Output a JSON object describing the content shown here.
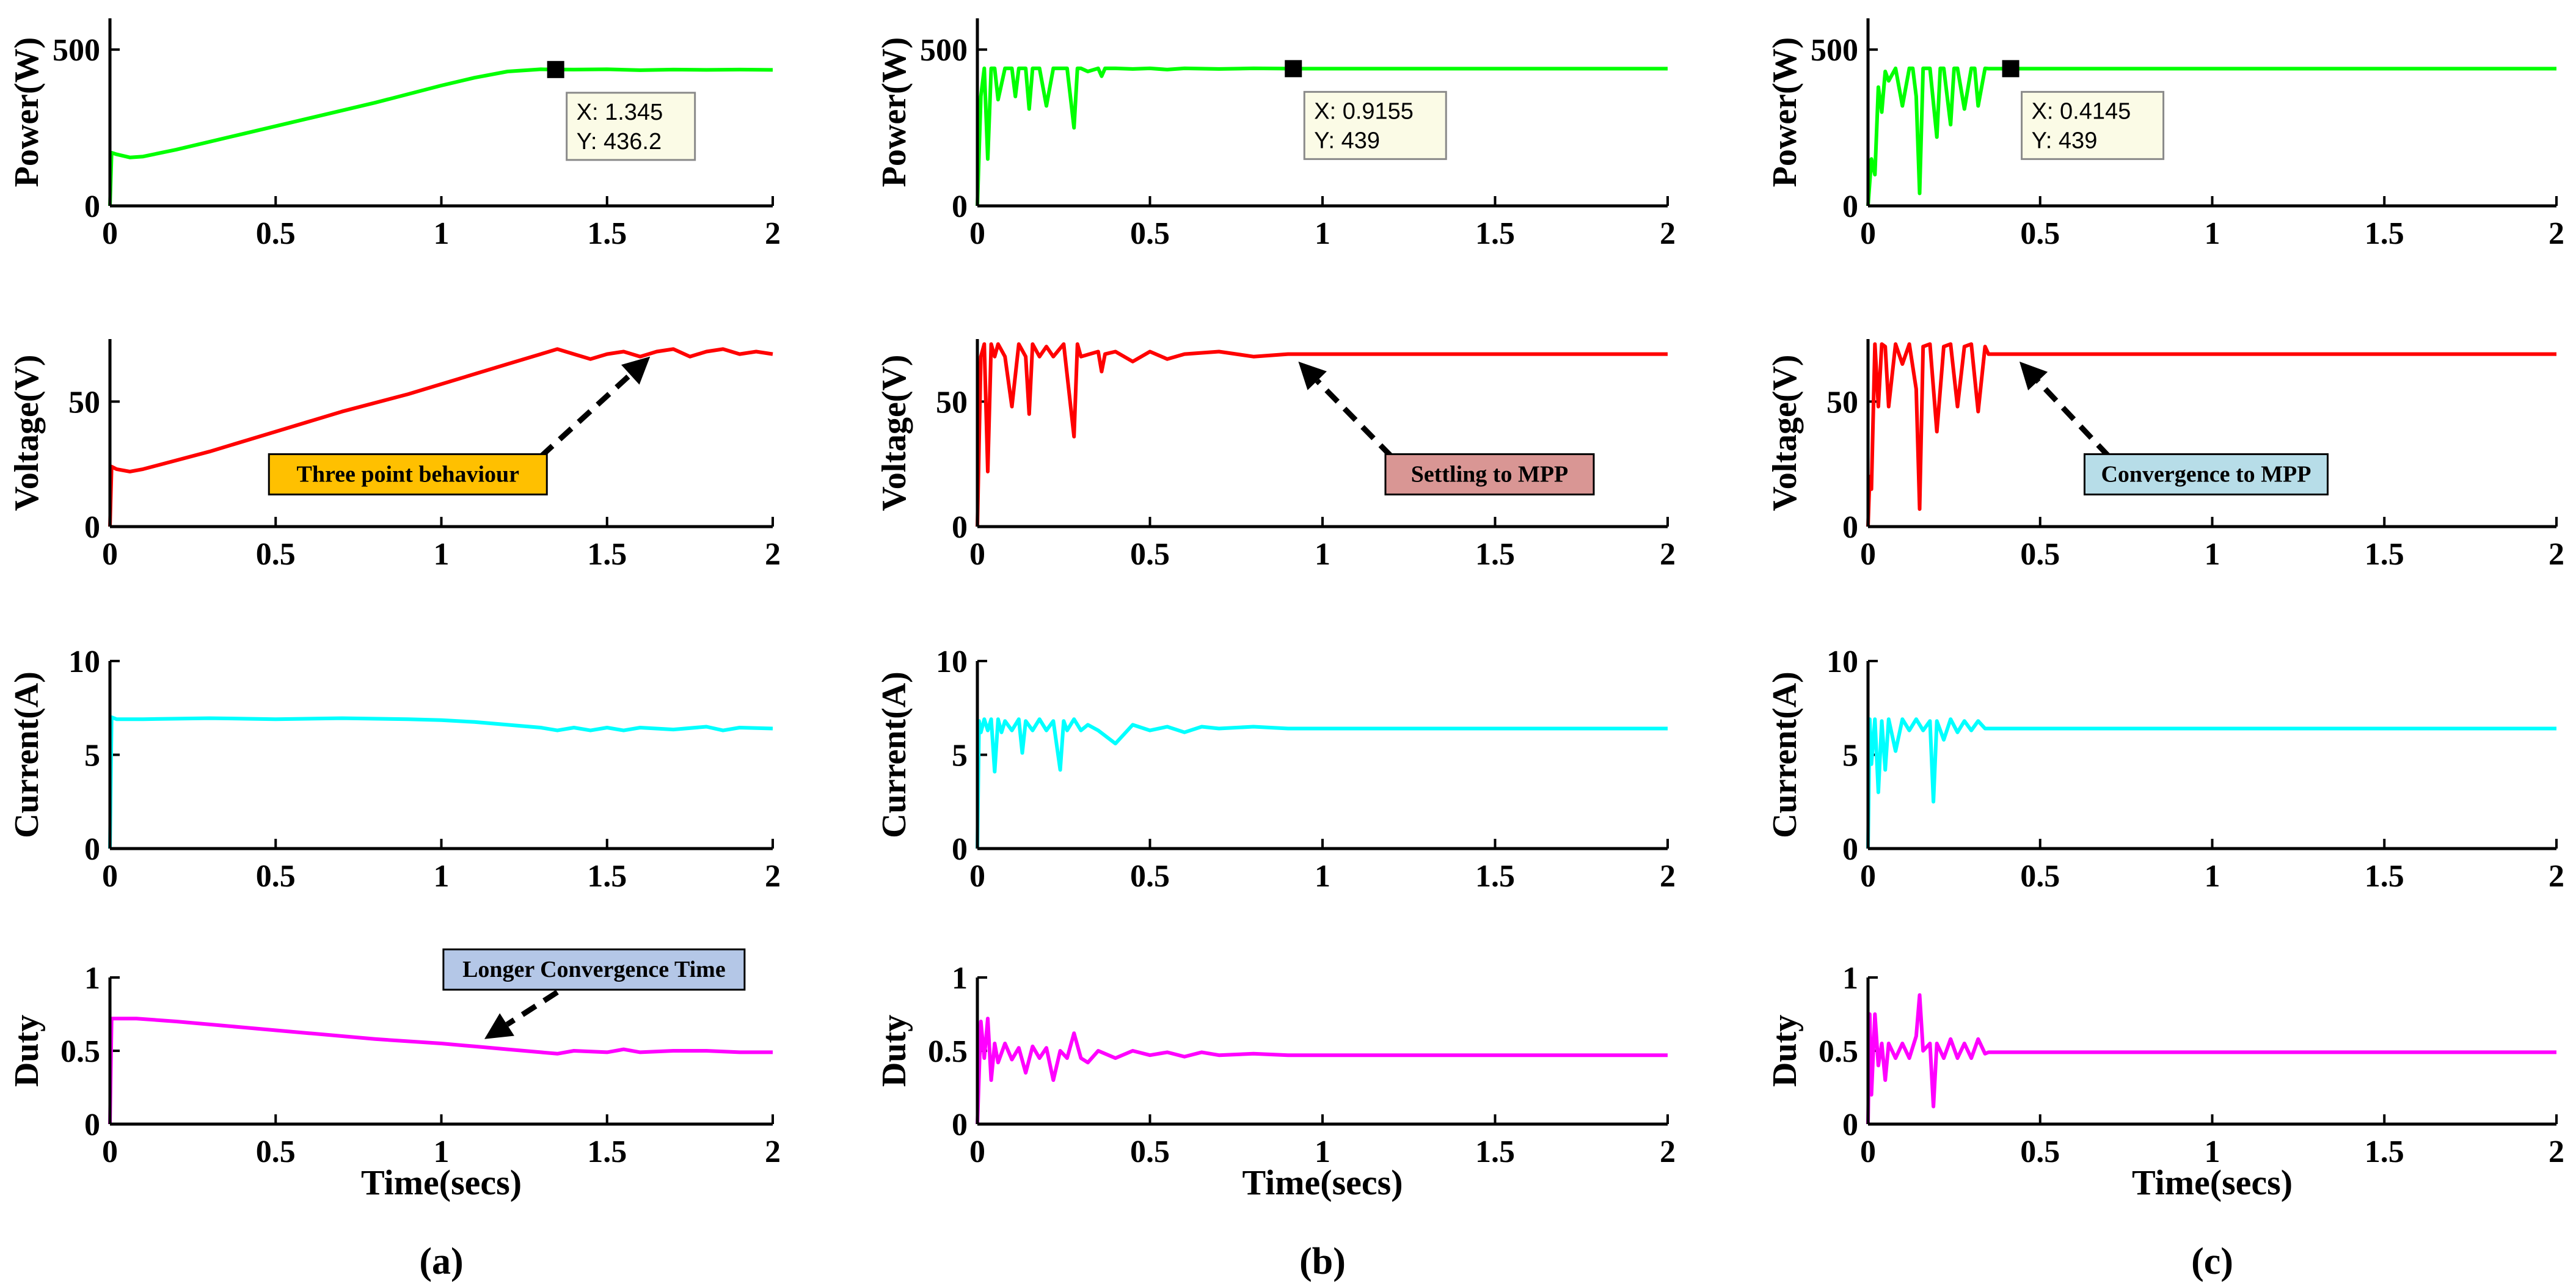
{
  "chart_data": [
    {
      "id": "a",
      "panel_label": "(a)",
      "type": "line",
      "xlabel": "Time(secs)",
      "xlim": [
        0,
        2
      ],
      "xticks": [
        "0",
        "0.5",
        "1",
        "1.5",
        "2"
      ],
      "subplots": [
        {
          "id": "power",
          "ylabel": "Power(W)",
          "ylim": [
            0,
            600
          ],
          "yticks": [
            "0",
            "500"
          ],
          "color": "#00ff00",
          "x": [
            0,
            0.005,
            0.02,
            0.06,
            0.1,
            0.2,
            0.4,
            0.6,
            0.8,
            1.0,
            1.1,
            1.2,
            1.3,
            1.345,
            1.4,
            1.5,
            1.6,
            1.7,
            1.8,
            1.9,
            2.0
          ],
          "y": [
            0,
            170,
            165,
            155,
            158,
            180,
            230,
            280,
            330,
            385,
            410,
            430,
            437,
            436.2,
            436,
            437,
            434,
            436,
            435,
            436,
            435
          ],
          "datatip": {
            "x": 1.345,
            "y": 436.2,
            "x_text": "X: 1.345",
            "y_text": "Y: 436.2"
          }
        },
        {
          "id": "voltage",
          "ylabel": "Voltage(V)",
          "ylim": [
            0,
            75
          ],
          "yticks": [
            "0",
            "50"
          ],
          "color": "#ff0000",
          "x": [
            0,
            0.005,
            0.02,
            0.06,
            0.1,
            0.3,
            0.5,
            0.7,
            0.9,
            1.1,
            1.2,
            1.3,
            1.35,
            1.4,
            1.45,
            1.5,
            1.55,
            1.6,
            1.65,
            1.7,
            1.75,
            1.8,
            1.85,
            1.9,
            1.95,
            2.0
          ],
          "y": [
            0,
            24,
            23,
            22,
            23,
            30,
            38,
            46,
            53,
            61,
            65,
            69,
            71,
            69,
            67,
            69,
            70,
            68,
            70,
            71,
            68,
            70,
            71,
            69,
            70,
            69
          ],
          "annotation": {
            "text": "Three point behaviour",
            "fill": "#ffc000",
            "from_x": 1.3,
            "from_y": 28,
            "to_x": 1.63,
            "to_y": 68
          }
        },
        {
          "id": "current",
          "ylabel": "Current(A)",
          "ylim": [
            0,
            10
          ],
          "yticks": [
            "0",
            "5",
            "10"
          ],
          "color": "#00ffff",
          "x": [
            0,
            0.005,
            0.02,
            0.1,
            0.3,
            0.5,
            0.7,
            0.9,
            1.0,
            1.1,
            1.2,
            1.3,
            1.35,
            1.4,
            1.45,
            1.5,
            1.55,
            1.6,
            1.7,
            1.8,
            1.85,
            1.9,
            2.0
          ],
          "y": [
            0,
            7.0,
            6.9,
            6.9,
            6.95,
            6.9,
            6.95,
            6.9,
            6.85,
            6.75,
            6.6,
            6.45,
            6.3,
            6.45,
            6.3,
            6.45,
            6.3,
            6.45,
            6.35,
            6.5,
            6.3,
            6.45,
            6.4
          ]
        },
        {
          "id": "duty",
          "ylabel": "Duty",
          "ylim": [
            0,
            1
          ],
          "yticks": [
            "0",
            "0.5",
            "1"
          ],
          "color": "#ff00ff",
          "x": [
            0,
            0.005,
            0.02,
            0.08,
            0.2,
            0.4,
            0.6,
            0.8,
            1.0,
            1.1,
            1.2,
            1.3,
            1.35,
            1.4,
            1.5,
            1.55,
            1.6,
            1.7,
            1.8,
            1.9,
            2.0
          ],
          "y": [
            0,
            0.72,
            0.72,
            0.72,
            0.7,
            0.66,
            0.62,
            0.58,
            0.55,
            0.53,
            0.51,
            0.49,
            0.48,
            0.5,
            0.49,
            0.51,
            0.49,
            0.5,
            0.5,
            0.49,
            0.49
          ],
          "annotation": {
            "text": "Longer Convergence Time",
            "fill": "#b4c7e7",
            "from_x": 1.35,
            "from_y": 0.9,
            "to_x": 1.13,
            "to_y": 0.58
          }
        }
      ]
    },
    {
      "id": "b",
      "panel_label": "(b)",
      "type": "line",
      "xlabel": "Time(secs)",
      "xlim": [
        0,
        2
      ],
      "xticks": [
        "0",
        "0.5",
        "1",
        "1.5",
        "2"
      ],
      "subplots": [
        {
          "id": "power",
          "ylabel": "Power(W)",
          "ylim": [
            0,
            600
          ],
          "yticks": [
            "0",
            "500"
          ],
          "color": "#00ff00",
          "x": [
            0,
            0.01,
            0.02,
            0.03,
            0.04,
            0.05,
            0.06,
            0.08,
            0.1,
            0.11,
            0.12,
            0.14,
            0.15,
            0.16,
            0.18,
            0.2,
            0.22,
            0.23,
            0.24,
            0.26,
            0.28,
            0.29,
            0.3,
            0.32,
            0.35,
            0.36,
            0.37,
            0.4,
            0.45,
            0.5,
            0.55,
            0.6,
            0.7,
            0.8,
            0.9155,
            1.0,
            1.5,
            2.0
          ],
          "y": [
            0,
            350,
            440,
            150,
            440,
            440,
            340,
            440,
            440,
            350,
            440,
            440,
            310,
            440,
            440,
            320,
            440,
            440,
            440,
            440,
            250,
            440,
            440,
            430,
            440,
            415,
            440,
            440,
            438,
            440,
            436,
            440,
            438,
            440,
            439,
            439,
            439,
            439
          ],
          "datatip": {
            "x": 0.9155,
            "y": 439,
            "x_text": "X: 0.9155",
            "y_text": "Y: 439"
          }
        },
        {
          "id": "voltage",
          "ylabel": "Voltage(V)",
          "ylim": [
            0,
            75
          ],
          "yticks": [
            "0",
            "50"
          ],
          "color": "#ff0000",
          "x": [
            0,
            0.01,
            0.02,
            0.03,
            0.04,
            0.05,
            0.06,
            0.08,
            0.1,
            0.12,
            0.14,
            0.15,
            0.16,
            0.18,
            0.2,
            0.22,
            0.25,
            0.28,
            0.29,
            0.3,
            0.35,
            0.36,
            0.37,
            0.4,
            0.45,
            0.5,
            0.55,
            0.6,
            0.7,
            0.8,
            0.9,
            1.0,
            1.5,
            2.0
          ],
          "y": [
            0,
            68,
            73,
            22,
            73,
            68,
            73,
            68,
            48,
            73,
            68,
            45,
            73,
            68,
            72,
            68,
            73,
            36,
            73,
            68,
            70,
            62,
            69,
            70,
            66,
            70,
            67,
            69,
            70,
            68,
            69,
            69,
            69,
            69
          ],
          "annotation": {
            "text": "Settling to MPP",
            "fill": "#d99694",
            "from_x": 1.2,
            "from_y": 28,
            "to_x": 0.93,
            "to_y": 66
          }
        },
        {
          "id": "current",
          "ylabel": "Current(A)",
          "ylim": [
            0,
            10
          ],
          "yticks": [
            "0",
            "5",
            "10"
          ],
          "color": "#00ffff",
          "x": [
            0,
            0.005,
            0.01,
            0.02,
            0.03,
            0.04,
            0.05,
            0.06,
            0.07,
            0.08,
            0.1,
            0.12,
            0.13,
            0.14,
            0.16,
            0.18,
            0.2,
            0.22,
            0.24,
            0.25,
            0.26,
            0.28,
            0.3,
            0.32,
            0.35,
            0.4,
            0.45,
            0.5,
            0.55,
            0.6,
            0.65,
            0.7,
            0.8,
            0.9,
            1.0,
            1.5,
            2.0
          ],
          "y": [
            0,
            6.8,
            6.2,
            6.9,
            6.3,
            6.9,
            4.1,
            6.9,
            6.2,
            6.8,
            6.3,
            6.9,
            5.1,
            6.8,
            6.3,
            6.9,
            6.3,
            6.8,
            4.2,
            6.8,
            6.3,
            6.9,
            6.3,
            6.6,
            6.3,
            5.6,
            6.6,
            6.3,
            6.5,
            6.2,
            6.5,
            6.4,
            6.5,
            6.4,
            6.4,
            6.4,
            6.4
          ]
        },
        {
          "id": "duty",
          "ylabel": "Duty",
          "ylim": [
            0,
            1
          ],
          "yticks": [
            "0",
            "0.5",
            "1"
          ],
          "color": "#ff00ff",
          "x": [
            0,
            0.01,
            0.02,
            0.03,
            0.04,
            0.05,
            0.06,
            0.08,
            0.1,
            0.12,
            0.14,
            0.16,
            0.18,
            0.2,
            0.22,
            0.24,
            0.26,
            0.28,
            0.3,
            0.32,
            0.35,
            0.4,
            0.45,
            0.5,
            0.55,
            0.6,
            0.65,
            0.7,
            0.8,
            0.9,
            1.0,
            1.5,
            2.0
          ],
          "y": [
            0,
            0.7,
            0.45,
            0.72,
            0.3,
            0.55,
            0.42,
            0.55,
            0.44,
            0.52,
            0.35,
            0.53,
            0.45,
            0.52,
            0.3,
            0.5,
            0.45,
            0.62,
            0.45,
            0.42,
            0.5,
            0.45,
            0.5,
            0.47,
            0.49,
            0.46,
            0.49,
            0.47,
            0.48,
            0.47,
            0.47,
            0.47,
            0.47
          ]
        }
      ]
    },
    {
      "id": "c",
      "panel_label": "(c)",
      "type": "line",
      "xlabel": "Time(secs)",
      "xlim": [
        0,
        2
      ],
      "xticks": [
        "0",
        "0.5",
        "1",
        "1.5",
        "2"
      ],
      "subplots": [
        {
          "id": "power",
          "ylabel": "Power(W)",
          "ylim": [
            0,
            600
          ],
          "yticks": [
            "0",
            "500"
          ],
          "color": "#00ff00",
          "x": [
            0,
            0.01,
            0.02,
            0.03,
            0.04,
            0.05,
            0.06,
            0.08,
            0.1,
            0.12,
            0.13,
            0.14,
            0.15,
            0.16,
            0.18,
            0.2,
            0.21,
            0.22,
            0.24,
            0.25,
            0.26,
            0.28,
            0.3,
            0.31,
            0.32,
            0.34,
            0.35,
            0.4145,
            0.5,
            1.0,
            1.5,
            2.0
          ],
          "y": [
            0,
            150,
            100,
            380,
            300,
            430,
            400,
            440,
            320,
            440,
            440,
            350,
            40,
            440,
            440,
            220,
            440,
            440,
            260,
            440,
            440,
            310,
            440,
            440,
            320,
            440,
            439,
            439,
            439,
            439,
            439,
            439
          ],
          "datatip": {
            "x": 0.4145,
            "y": 439,
            "x_text": "X: 0.4145",
            "y_text": "Y: 439"
          }
        },
        {
          "id": "voltage",
          "ylabel": "Voltage(V)",
          "ylim": [
            0,
            75
          ],
          "yticks": [
            "0",
            "50"
          ],
          "color": "#ff0000",
          "x": [
            0,
            0.005,
            0.01,
            0.02,
            0.03,
            0.04,
            0.05,
            0.06,
            0.08,
            0.1,
            0.12,
            0.14,
            0.15,
            0.16,
            0.18,
            0.2,
            0.22,
            0.24,
            0.26,
            0.28,
            0.3,
            0.32,
            0.34,
            0.35,
            0.4,
            0.5,
            1.0,
            1.5,
            2.0
          ],
          "y": [
            0,
            20,
            15,
            73,
            48,
            73,
            72,
            48,
            73,
            65,
            73,
            55,
            7,
            72,
            73,
            38,
            72,
            73,
            48,
            72,
            73,
            46,
            72,
            69,
            69,
            69,
            69,
            69,
            69
          ],
          "annotation": {
            "text": "Convergence to MPP",
            "fill": "#b7dde8",
            "from_x": 0.7,
            "from_y": 28,
            "to_x": 0.44,
            "to_y": 66
          }
        },
        {
          "id": "current",
          "ylabel": "Current(A)",
          "ylim": [
            0,
            10
          ],
          "yticks": [
            "0",
            "5",
            "10"
          ],
          "color": "#00ffff",
          "x": [
            0,
            0.005,
            0.01,
            0.02,
            0.03,
            0.04,
            0.05,
            0.06,
            0.08,
            0.1,
            0.12,
            0.14,
            0.16,
            0.18,
            0.19,
            0.2,
            0.22,
            0.24,
            0.26,
            0.28,
            0.3,
            0.32,
            0.34,
            0.35,
            0.4,
            1.0,
            1.5,
            2.0
          ],
          "y": [
            0,
            6.9,
            4.5,
            6.9,
            3.0,
            6.8,
            4.2,
            6.9,
            5.2,
            6.9,
            6.3,
            6.9,
            6.3,
            6.8,
            2.5,
            6.8,
            5.8,
            6.9,
            6.2,
            6.8,
            6.3,
            6.8,
            6.4,
            6.4,
            6.4,
            6.4,
            6.4,
            6.4
          ]
        },
        {
          "id": "duty",
          "ylabel": "Duty",
          "ylim": [
            0,
            1
          ],
          "yticks": [
            "0",
            "0.5",
            "1"
          ],
          "color": "#ff00ff",
          "x": [
            0,
            0.005,
            0.01,
            0.02,
            0.03,
            0.04,
            0.05,
            0.06,
            0.08,
            0.1,
            0.12,
            0.14,
            0.15,
            0.16,
            0.18,
            0.19,
            0.2,
            0.22,
            0.24,
            0.26,
            0.28,
            0.3,
            0.32,
            0.34,
            0.35,
            0.4,
            1.0,
            1.5,
            2.0
          ],
          "y": [
            0,
            0.75,
            0.2,
            0.75,
            0.4,
            0.55,
            0.3,
            0.55,
            0.45,
            0.55,
            0.45,
            0.6,
            0.88,
            0.5,
            0.55,
            0.12,
            0.55,
            0.45,
            0.58,
            0.45,
            0.55,
            0.45,
            0.58,
            0.48,
            0.49,
            0.49,
            0.49,
            0.49,
            0.49
          ]
        }
      ]
    }
  ]
}
